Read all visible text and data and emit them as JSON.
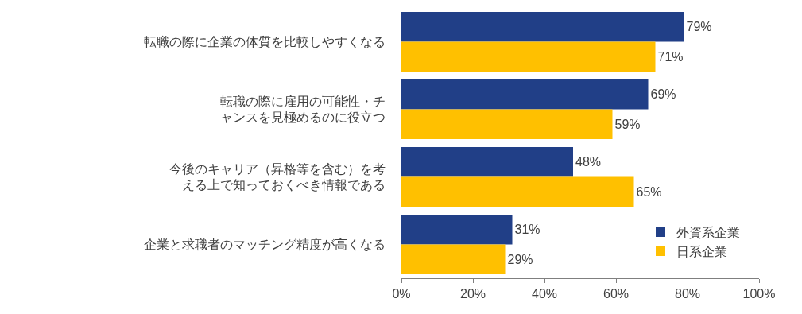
{
  "chart_data": {
    "type": "bar",
    "orientation": "horizontal",
    "categories": [
      "転職の際に企業の体質を比較しやすくなる",
      "転職の際に雇用の可能性・チャンスを見極めるのに役立つ",
      "今後のキャリア（昇格等を含む）を考える上で知っておくべき情報である",
      "企業と求職者のマッチング精度が高くなる"
    ],
    "series": [
      {
        "name": "外資系企業",
        "color": "#213f87",
        "values": [
          79,
          69,
          48,
          31
        ],
        "value_labels": [
          "79%",
          "69%",
          "48%",
          "31%"
        ]
      },
      {
        "name": "日系企業",
        "color": "#ffc000",
        "values": [
          71,
          59,
          65,
          29
        ],
        "value_labels": [
          "71%",
          "59%",
          "65%",
          "29%"
        ]
      }
    ],
    "xlim": [
      0,
      100
    ],
    "xticks": [
      {
        "value": 0,
        "label": "0%"
      },
      {
        "value": 20,
        "label": "20%"
      },
      {
        "value": 40,
        "label": "40%"
      },
      {
        "value": 60,
        "label": "60%"
      },
      {
        "value": 80,
        "label": "80%"
      },
      {
        "value": 100,
        "label": "100%"
      }
    ],
    "grid": false,
    "legend": "bottom right"
  }
}
